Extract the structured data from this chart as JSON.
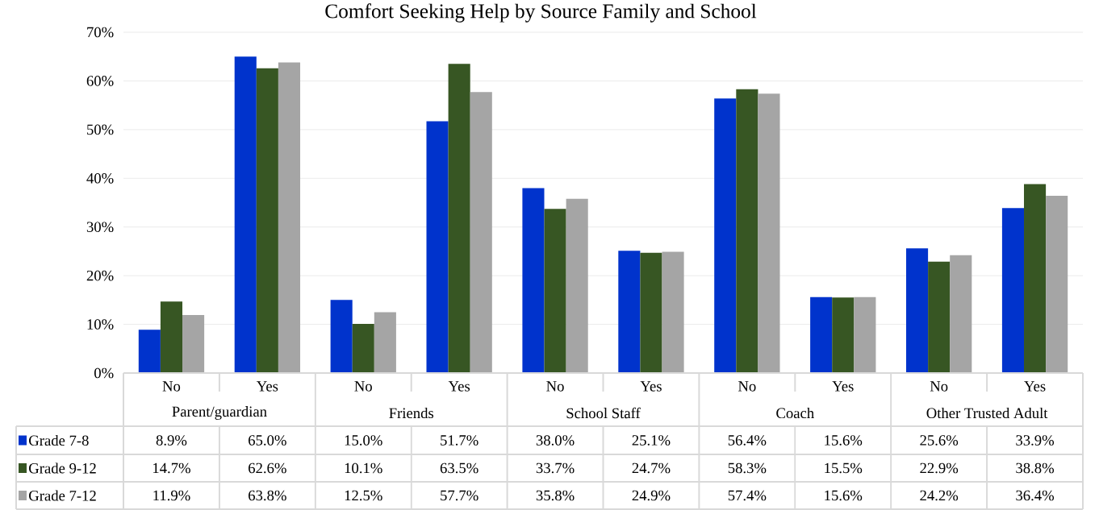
{
  "chart_data": {
    "type": "bar",
    "title": "Comfort Seeking Help by Source Family and School",
    "categories": [
      "No",
      "Yes",
      "No",
      "Yes",
      "No",
      "Yes",
      "No",
      "Yes",
      "No",
      "Yes"
    ],
    "annotations": [
      "Parent/guardian",
      "Friends",
      "School Staff",
      "Coach",
      "Other Trusted Adult"
    ],
    "series": [
      {
        "name": "Grade  7-8",
        "color": "#0033cc",
        "values": [
          8.9,
          65.0,
          15.0,
          51.7,
          38.0,
          25.1,
          56.4,
          15.6,
          25.6,
          33.9
        ],
        "value_labels": [
          "8.9%",
          "65.0%",
          "15.0%",
          "51.7%",
          "38.0%",
          "25.1%",
          "56.4%",
          "15.6%",
          "25.6%",
          "33.9%"
        ]
      },
      {
        "name": "Grade  9-12",
        "color": "#375623",
        "values": [
          14.7,
          62.6,
          10.1,
          63.5,
          33.7,
          24.7,
          58.3,
          15.5,
          22.9,
          38.8
        ],
        "value_labels": [
          "14.7%",
          "62.6%",
          "10.1%",
          "63.5%",
          "33.7%",
          "24.7%",
          "58.3%",
          "15.5%",
          "22.9%",
          "38.8%"
        ]
      },
      {
        "name": "Grade  7-12",
        "color": "#a5a5a5",
        "values": [
          11.9,
          63.8,
          12.5,
          57.7,
          35.8,
          24.9,
          57.4,
          15.6,
          24.2,
          36.4
        ],
        "value_labels": [
          "11.9%",
          "63.8%",
          "12.5%",
          "57.7%",
          "35.8%",
          "24.9%",
          "57.4%",
          "15.6%",
          "24.2%",
          "36.4%"
        ]
      }
    ],
    "ylim": [
      0,
      70
    ],
    "yticks": [
      {
        "value": 0,
        "label": "0%"
      },
      {
        "value": 10,
        "label": "10%"
      },
      {
        "value": 20,
        "label": "20%"
      },
      {
        "value": 30,
        "label": "30%"
      },
      {
        "value": 40,
        "label": "40%"
      },
      {
        "value": 50,
        "label": "50%"
      },
      {
        "value": 60,
        "label": "60%"
      },
      {
        "value": 70,
        "label": "70%"
      }
    ],
    "grid": "y",
    "legend": "bottom left"
  }
}
